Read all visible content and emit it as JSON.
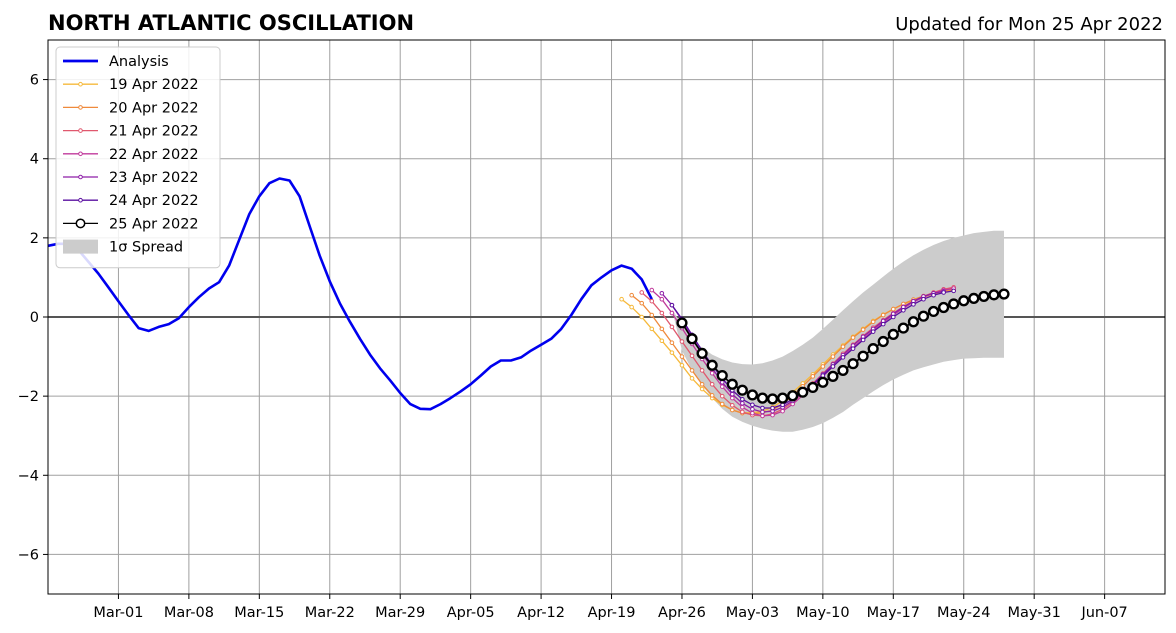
{
  "chart_data": {
    "type": "line",
    "title": "NORTH ATLANTIC OSCILLATION",
    "subtitle": "Updated for Mon 25 Apr 2022",
    "xlabel": "",
    "ylabel": "",
    "x_range": [
      "2022-02-22",
      "2022-06-13"
    ],
    "ylim": [
      -7,
      7
    ],
    "grid": true,
    "legend_position": "top-left",
    "x_ticks": [
      {
        "date": "2022-03-01",
        "label": "Mar-01"
      },
      {
        "date": "2022-03-08",
        "label": "Mar-08"
      },
      {
        "date": "2022-03-15",
        "label": "Mar-15"
      },
      {
        "date": "2022-03-22",
        "label": "Mar-22"
      },
      {
        "date": "2022-03-29",
        "label": "Mar-29"
      },
      {
        "date": "2022-04-05",
        "label": "Apr-05"
      },
      {
        "date": "2022-04-12",
        "label": "Apr-12"
      },
      {
        "date": "2022-04-19",
        "label": "Apr-19"
      },
      {
        "date": "2022-04-26",
        "label": "Apr-26"
      },
      {
        "date": "2022-05-03",
        "label": "May-03"
      },
      {
        "date": "2022-05-10",
        "label": "May-10"
      },
      {
        "date": "2022-05-17",
        "label": "May-17"
      },
      {
        "date": "2022-05-24",
        "label": "May-24"
      },
      {
        "date": "2022-05-31",
        "label": "May-31"
      },
      {
        "date": "2022-06-07",
        "label": "Jun-07"
      }
    ],
    "y_ticks": [
      {
        "value": 6,
        "label": "6"
      },
      {
        "value": 4,
        "label": "4"
      },
      {
        "value": 2,
        "label": "2"
      },
      {
        "value": 0,
        "label": "0"
      },
      {
        "value": -2,
        "label": "−2"
      },
      {
        "value": -4,
        "label": "−4"
      },
      {
        "value": -6,
        "label": "−6"
      }
    ],
    "analysis": {
      "name": "Analysis",
      "color": "#0000ee",
      "start_date": "2022-02-22",
      "values": [
        1.8,
        1.85,
        1.85,
        1.7,
        1.4,
        1.1,
        0.75,
        0.4,
        0.05,
        -0.28,
        -0.35,
        -0.25,
        -0.18,
        -0.03,
        0.25,
        0.5,
        0.72,
        0.88,
        1.3,
        1.95,
        2.6,
        3.05,
        3.38,
        3.5,
        3.45,
        3.05,
        2.3,
        1.55,
        0.9,
        0.35,
        -0.12,
        -0.55,
        -0.95,
        -1.3,
        -1.6,
        -1.92,
        -2.2,
        -2.32,
        -2.33,
        -2.2,
        -2.05,
        -1.88,
        -1.7,
        -1.48,
        -1.25,
        -1.1,
        -1.1,
        -1.02,
        -0.85,
        -0.7,
        -0.55,
        -0.3,
        0.05,
        0.45,
        0.8,
        1.0,
        1.18,
        1.3,
        1.22,
        0.95,
        0.45
      ]
    },
    "forecasts": [
      {
        "name": "19 Apr 2022",
        "color": "#f6b93b",
        "start_date": "2022-04-20",
        "values": [
          0.45,
          0.25,
          0.0,
          -0.3,
          -0.6,
          -0.9,
          -1.22,
          -1.55,
          -1.82,
          -2.05,
          -2.22,
          -2.35,
          -2.42,
          -2.42,
          -2.38,
          -2.28,
          -2.12,
          -1.9,
          -1.68,
          -1.45,
          -1.2,
          -0.95,
          -0.72,
          -0.5,
          -0.3,
          -0.1,
          0.06,
          0.2,
          0.32,
          0.42,
          0.5,
          0.58,
          0.64,
          0.68
        ]
      },
      {
        "name": "20 Apr 2022",
        "color": "#ef8a3c",
        "start_date": "2022-04-21",
        "values": [
          0.55,
          0.35,
          0.05,
          -0.3,
          -0.65,
          -1.0,
          -1.35,
          -1.7,
          -1.98,
          -2.2,
          -2.35,
          -2.43,
          -2.45,
          -2.42,
          -2.35,
          -2.2,
          -1.98,
          -1.75,
          -1.5,
          -1.25,
          -1.0,
          -0.75,
          -0.52,
          -0.32,
          -0.12,
          0.05,
          0.2,
          0.33,
          0.44,
          0.53,
          0.6,
          0.66,
          0.7
        ]
      },
      {
        "name": "21 Apr 2022",
        "color": "#e0586e",
        "start_date": "2022-04-22",
        "values": [
          0.62,
          0.4,
          0.1,
          -0.25,
          -0.62,
          -0.98,
          -1.35,
          -1.7,
          -2.0,
          -2.23,
          -2.4,
          -2.48,
          -2.5,
          -2.45,
          -2.33,
          -2.15,
          -1.92,
          -1.68,
          -1.43,
          -1.18,
          -0.93,
          -0.7,
          -0.48,
          -0.27,
          -0.08,
          0.1,
          0.26,
          0.4,
          0.52,
          0.62,
          0.7,
          0.75
        ]
      },
      {
        "name": "22 Apr 2022",
        "color": "#c0399b",
        "start_date": "2022-04-23",
        "values": [
          0.68,
          0.45,
          0.1,
          -0.28,
          -0.68,
          -1.06,
          -1.42,
          -1.76,
          -2.05,
          -2.28,
          -2.43,
          -2.5,
          -2.48,
          -2.38,
          -2.2,
          -1.98,
          -1.75,
          -1.5,
          -1.25,
          -1.0,
          -0.77,
          -0.55,
          -0.34,
          -0.14,
          0.05,
          0.22,
          0.38,
          0.5,
          0.6,
          0.68,
          0.72
        ]
      },
      {
        "name": "23 Apr 2022",
        "color": "#8e1ea8",
        "start_date": "2022-04-24",
        "values": [
          0.6,
          0.3,
          -0.08,
          -0.5,
          -0.92,
          -1.3,
          -1.65,
          -1.95,
          -2.18,
          -2.33,
          -2.4,
          -2.38,
          -2.28,
          -2.12,
          -1.92,
          -1.7,
          -1.45,
          -1.2,
          -0.96,
          -0.72,
          -0.5,
          -0.3,
          -0.1,
          0.08,
          0.25,
          0.4,
          0.52,
          0.6,
          0.65
        ]
      },
      {
        "name": "24 Apr 2022",
        "color": "#5a0fa0",
        "start_date": "2022-04-25",
        "values": [
          0.3,
          -0.05,
          -0.45,
          -0.85,
          -1.22,
          -1.55,
          -1.85,
          -2.08,
          -2.22,
          -2.3,
          -2.3,
          -2.22,
          -2.08,
          -1.9,
          -1.7,
          -1.48,
          -1.25,
          -1.02,
          -0.8,
          -0.58,
          -0.37,
          -0.18,
          0.0,
          0.17,
          0.32,
          0.45,
          0.55,
          0.62,
          0.66
        ]
      }
    ],
    "current_forecast": {
      "name": "25 Apr 2022",
      "color": "#000000",
      "start_date": "2022-04-26",
      "values": [
        -0.15,
        -0.55,
        -0.92,
        -1.22,
        -1.48,
        -1.7,
        -1.85,
        -1.97,
        -2.05,
        -2.07,
        -2.05,
        -1.99,
        -1.9,
        -1.78,
        -1.65,
        -1.5,
        -1.35,
        -1.18,
        -0.99,
        -0.8,
        -0.62,
        -0.44,
        -0.28,
        -0.12,
        0.02,
        0.14,
        0.24,
        0.33,
        0.41,
        0.47,
        0.52,
        0.56,
        0.58
      ]
    },
    "spread": {
      "name": "1σ Spread",
      "color": "#cccccc",
      "start_date": "2022-04-25",
      "upper": [
        0.2,
        -0.2,
        -0.55,
        -0.78,
        -0.95,
        -1.07,
        -1.15,
        -1.19,
        -1.2,
        -1.17,
        -1.1,
        -1.0,
        -0.86,
        -0.7,
        -0.52,
        -0.3,
        -0.07,
        0.17,
        0.4,
        0.62,
        0.82,
        1.02,
        1.22,
        1.4,
        1.56,
        1.7,
        1.82,
        1.92,
        2.0,
        2.06,
        2.12,
        2.15,
        2.18,
        2.18
      ],
      "lower": [
        0.2,
        -0.85,
        -1.35,
        -1.72,
        -2.05,
        -2.32,
        -2.52,
        -2.65,
        -2.75,
        -2.82,
        -2.87,
        -2.9,
        -2.9,
        -2.85,
        -2.78,
        -2.68,
        -2.55,
        -2.4,
        -2.22,
        -2.05,
        -1.88,
        -1.72,
        -1.58,
        -1.46,
        -1.35,
        -1.27,
        -1.2,
        -1.13,
        -1.09,
        -1.05,
        -1.04,
        -1.03,
        -1.03,
        -1.03
      ]
    }
  }
}
